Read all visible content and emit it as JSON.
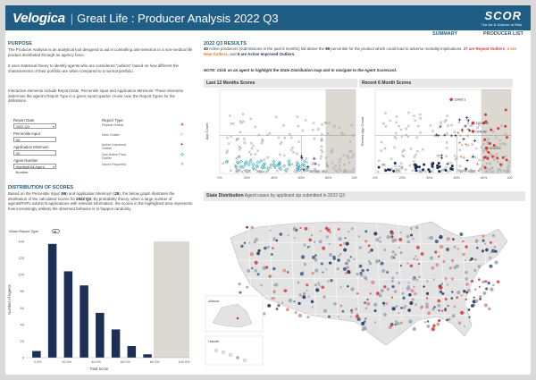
{
  "header": {
    "logo": "Velogica",
    "title": "Great Life : Producer Analysis  2022 Q3",
    "brand": "SCOR",
    "brand_tagline": "The Art & Science of Risk"
  },
  "nav": {
    "summary": "SUMMARY",
    "producer_list": "PRODUCER LIST"
  },
  "purpose": {
    "heading": "PURPOSE",
    "p1": "The Producer Analysis is an analytical tool designed to aid in controlling anti-selection in a non-medical life product distributed through an agency force.",
    "p2": "It uses statistical theory to identify agents who are considered \"outliers\" based on how different the characteristics of their portfolio are when compared to a normal portfolio.",
    "p3": "Interactive elements include Report Date, Percentile Input and Application Minimum. These elements determine the agent's Report Type in a given report quarter. Hover over the Report Types for the definitions."
  },
  "controls": {
    "report_date_label": "Report Date",
    "report_date_value": "2022 Q3",
    "percentile_label": "Percentile Input",
    "percentile_value": "99",
    "app_min_label": "Application Minimum",
    "app_min_value": "25",
    "agent_label": "Agent Number",
    "agent_value": "Highlight All Agent Number"
  },
  "report_type": {
    "heading": "Report Type",
    "items": [
      {
        "label": "Repeat Outlier",
        "symbol": "✕",
        "color": "#d63a3a"
      },
      {
        "label": "New Outlier",
        "symbol": "□",
        "color": "#e8752a"
      },
      {
        "label": "Active Improved Outlier",
        "symbol": "+",
        "color": "#1e2e55"
      },
      {
        "label": "Non Active Past Outlier",
        "symbol": "◇",
        "color": "#1aa8b8"
      },
      {
        "label": "Never Reported",
        "symbol": "✕",
        "color": "#aaaaaa"
      }
    ]
  },
  "distribution": {
    "heading": "DISTRIBUTION OF SCORES",
    "text_a": "Based on the Percentile Input (",
    "percentile": "99",
    "text_b": ") and Application Minimum (",
    "app_min": "25",
    "text_c": "), the below graph illustrates the distribution of the calculated scores for ",
    "quarter": "2022 Q3",
    "text_d": ". By probability theory, when a large number of agents/RVPs submit N applications with relevant information, the scores in the highlighted area represents how increasingly unlikely the observed behavior is to happen randomly.",
    "toggle_label": "Show Report Type"
  },
  "results": {
    "heading": "2022 Q3 RESULTS",
    "count": "40",
    "text_a": " Active producers (submissions in the past 6 months) fall above the ",
    "percentile": "99",
    "text_b": " percentile for the product which could lead to adverse mortality implications. ",
    "repeat_n": "27",
    "repeat_label": "are Repeat Outliers",
    "new_n": "4",
    "new_label": "are New Outliers",
    "improved_n": "9",
    "improved_label": "are Active Improved Outliers.",
    "note": "NOTE: Click on an agent to highlight the State Distribution map and to navigate to the Agent Scorecard."
  },
  "scatter_panels": {
    "last12_title": "Last 12 Months Scores",
    "recent6_title": "Recent 6 Month Scores",
    "percentile_tag": "99 Percentile",
    "agent_labels": [
      "12ABC1",
      "12EZDM",
      "024EAF",
      "02XCZ2"
    ]
  },
  "map": {
    "title": "State Distribution",
    "subtitle": "Agent cases by applicant zip submitted in 2022 Q3",
    "alaska": "Alaska",
    "hawaii": "Hawaii"
  },
  "chart_data": [
    {
      "type": "bar",
      "title": "",
      "xlabel": "Total Score",
      "ylabel": "Number of Agents",
      "ylim": [
        0,
        140
      ],
      "yticks": [
        0,
        20,
        40,
        60,
        80,
        100,
        120,
        140
      ],
      "xtick_labels": [
        "0.0%",
        "20.0%",
        "40.0%",
        "60.0%",
        "80.0%",
        "100.0%"
      ],
      "categories": [
        "0-10%",
        "10-20%",
        "20-30%",
        "30-40%",
        "40-50%",
        "50-60%",
        "60-70%",
        "70-80%"
      ],
      "values": [
        8,
        137,
        104,
        87,
        54,
        34,
        14,
        4
      ],
      "highlight_from": "90.0%"
    },
    {
      "type": "scatter",
      "title": "Last 12 Months Scores",
      "xlabel": "",
      "ylabel": "App Count",
      "xtick_labels": [
        "0%",
        "20%",
        "40%",
        "60%",
        "80%",
        "100%"
      ]
    },
    {
      "type": "scatter",
      "title": "Recent 6 Month Scores",
      "xlabel": "",
      "ylabel": "Recent App Count",
      "xtick_labels": [
        "0%",
        "20%",
        "40%",
        "60%",
        "80%",
        "100%"
      ]
    }
  ]
}
